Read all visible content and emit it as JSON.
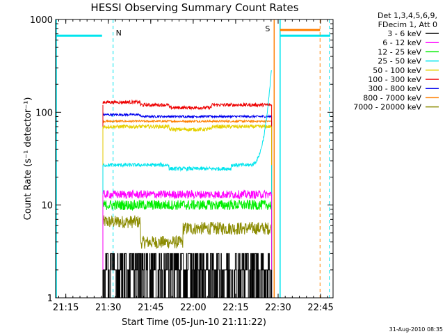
{
  "chart_data": {
    "type": "line",
    "title": "HESSI Observing Summary Count Rates",
    "xlabel": "Start Time (05-Jun-10 21:11:22)",
    "ylabel": "Count Rate (s⁻¹ detector⁻¹)",
    "yscale": "log",
    "ylim": [
      1,
      1000
    ],
    "xlim_minutes": [
      0,
      98
    ],
    "x_ticks": [
      {
        "label": "21:15",
        "min": 3.6
      },
      {
        "label": "21:30",
        "min": 18.6
      },
      {
        "label": "21:45",
        "min": 33.6
      },
      {
        "label": "22:00",
        "min": 48.6
      },
      {
        "label": "22:15",
        "min": 63.6
      },
      {
        "label": "22:30",
        "min": 78.6
      },
      {
        "label": "22:45",
        "min": 93.6
      }
    ],
    "y_ticks": [
      {
        "label": "1",
        "v": 1
      },
      {
        "label": "10",
        "v": 10
      },
      {
        "label": "100",
        "v": 100
      },
      {
        "label": "1000",
        "v": 1000
      }
    ],
    "legend_header": [
      "Det 1,3,4,5,6,9,",
      "FDecim 1, Att 0"
    ],
    "legend_position": "outside-right",
    "timestamp": "31-Aug-2010 08:35",
    "markers": [
      {
        "label": "N",
        "color": "#00e5ee"
      },
      {
        "label": "S",
        "color": "#ff7f00"
      }
    ],
    "series": [
      {
        "name": "3 - 6 keV",
        "color": "#000000",
        "level": 2.0
      },
      {
        "name": "6 - 12 keV",
        "color": "#ff00ff",
        "level": 13
      },
      {
        "name": "12 - 25 keV",
        "color": "#00ee00",
        "level": 10
      },
      {
        "name": "25 - 50 keV",
        "color": "#00e5ee",
        "level": 27
      },
      {
        "name": "50 - 100 keV",
        "color": "#e5d000",
        "level": 70
      },
      {
        "name": "100 - 300 keV",
        "color": "#ee0000",
        "level": 120
      },
      {
        "name": "300 - 800 keV",
        "color": "#0000ee",
        "level": 90
      },
      {
        "name": "800 - 7000 keV",
        "color": "#ff7f00",
        "level": 80
      },
      {
        "name": "7000 - 20000 keV",
        "color": "#8b8b00",
        "level": 5
      }
    ]
  }
}
